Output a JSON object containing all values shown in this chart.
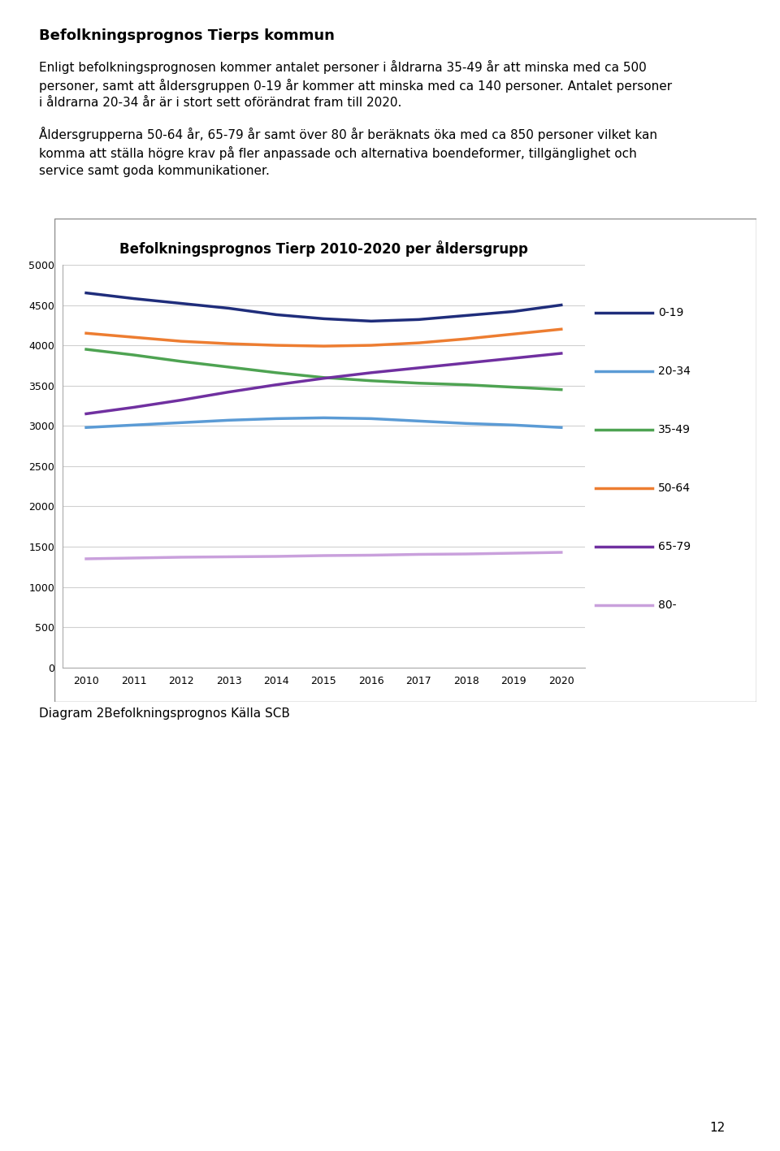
{
  "title": "Befolkningsprognos Tierp 2010-2020 per åldersgrupp",
  "years": [
    2010,
    2011,
    2012,
    2013,
    2014,
    2015,
    2016,
    2017,
    2018,
    2019,
    2020
  ],
  "series": {
    "0-19": [
      4650,
      4580,
      4520,
      4460,
      4380,
      4330,
      4300,
      4320,
      4370,
      4420,
      4500
    ],
    "20-34": [
      2980,
      3010,
      3040,
      3070,
      3090,
      3100,
      3090,
      3060,
      3030,
      3010,
      2980
    ],
    "35-49": [
      3950,
      3880,
      3800,
      3730,
      3660,
      3600,
      3560,
      3530,
      3510,
      3480,
      3450
    ],
    "50-64": [
      4150,
      4100,
      4050,
      4020,
      4000,
      3990,
      4000,
      4030,
      4080,
      4140,
      4200
    ],
    "65-79": [
      3150,
      3230,
      3320,
      3420,
      3510,
      3590,
      3660,
      3720,
      3780,
      3840,
      3900
    ],
    "80-": [
      1350,
      1360,
      1370,
      1375,
      1380,
      1390,
      1395,
      1405,
      1410,
      1420,
      1430
    ]
  },
  "colors": {
    "0-19": "#1f2d7b",
    "20-34": "#5b9bd5",
    "35-49": "#4ea352",
    "50-64": "#ed7d31",
    "65-79": "#7030a0",
    "80-": "#c9a0dc"
  },
  "ylim": [
    0,
    5000
  ],
  "yticks": [
    0,
    500,
    1000,
    1500,
    2000,
    2500,
    3000,
    3500,
    4000,
    4500,
    5000
  ],
  "heading": "Befolkningsprognos Tierps kommun",
  "para1_line1": "Enligt befolkningsprognosen kommer antalet personer i åldrarna 35-49 år att minska med ca 500",
  "para1_line2": "personer, samt att åldersgruppen 0-19 år kommer att minska med ca 140 personer. Antalet personer",
  "para1_line3": "i åldrarna 20-34 år är i stort sett oförändrat fram till 2020.",
  "para2_line1": "Åldersgrupperna 50-64 år, 65-79 år samt över 80 år beräknats öka med ca 850 personer vilket kan",
  "para2_line2": "komma att ställa högre krav på fler anpassade och alternativa boendeformer, tillgänglighet och",
  "para2_line3": "service samt goda kommunikationer.",
  "caption": "Diagram 2Befolkningsprognos Källa SCB",
  "page_number": "12",
  "linewidth": 2.5,
  "text_fontsize": 11,
  "heading_fontsize": 13,
  "title_fontsize": 12
}
